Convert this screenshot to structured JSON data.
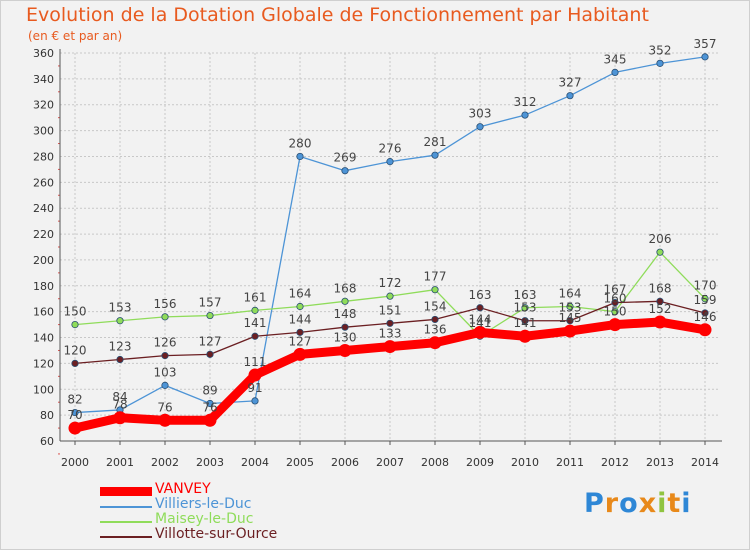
{
  "chart_data": {
    "type": "line",
    "title": "Evolution de la Dotation Globale de Fonctionnement par Habitant",
    "subtitle": "(en € et par an)",
    "xlabel": "",
    "ylabel": "",
    "ylim": [
      60,
      360
    ],
    "ytick_step": 20,
    "grid": true,
    "legend_position": "bottom-left",
    "x": [
      "2000",
      "2001",
      "2002",
      "2003",
      "2004",
      "2005",
      "2006",
      "2007",
      "2008",
      "2009",
      "2010",
      "2011",
      "2012",
      "2013",
      "2014"
    ],
    "series": [
      {
        "name": "VANVEY",
        "color": "#ff0000",
        "values": [
          70,
          78,
          76,
          76,
          111,
          127,
          130,
          133,
          136,
          144,
          141,
          145,
          150,
          152,
          146
        ]
      },
      {
        "name": "Villiers-le-Duc",
        "color": "#4d94d6",
        "values": [
          82,
          84,
          103,
          89,
          91,
          280,
          269,
          276,
          281,
          303,
          312,
          327,
          345,
          352,
          357
        ]
      },
      {
        "name": "Maisey-le-Duc",
        "color": "#8fdc5a",
        "values": [
          150,
          153,
          156,
          157,
          161,
          164,
          168,
          172,
          177,
          141,
          163,
          164,
          160,
          206,
          170
        ]
      },
      {
        "name": "Villotte-sur-Ource",
        "color": "#6b1f22",
        "values": [
          120,
          123,
          126,
          127,
          141,
          144,
          148,
          151,
          154,
          163,
          153,
          153,
          167,
          168,
          159
        ]
      }
    ]
  },
  "logo": {
    "letters": [
      "P",
      "r",
      "o",
      "x",
      "i",
      "t",
      "i"
    ],
    "colors": [
      "#2e87d6",
      "#e8891a",
      "#2e87d6",
      "#e8891a",
      "#8fc440",
      "#e8891a",
      "#2e87d6"
    ]
  }
}
